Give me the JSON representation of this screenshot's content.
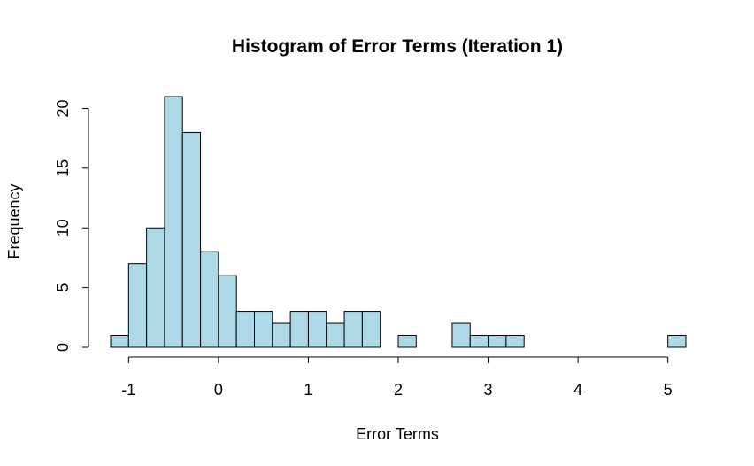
{
  "chart_data": {
    "type": "bar",
    "subtype": "histogram",
    "title": "Histogram of Error Terms (Iteration 1)",
    "xlabel": "Error Terms",
    "ylabel": "Frequency",
    "bin_width": 0.2,
    "bins": [
      {
        "start": -1.2,
        "end": -1.0,
        "count": 1
      },
      {
        "start": -1.0,
        "end": -0.8,
        "count": 7
      },
      {
        "start": -0.8,
        "end": -0.6,
        "count": 10
      },
      {
        "start": -0.6,
        "end": -0.4,
        "count": 21
      },
      {
        "start": -0.4,
        "end": -0.2,
        "count": 18
      },
      {
        "start": -0.2,
        "end": 0.0,
        "count": 8
      },
      {
        "start": 0.0,
        "end": 0.2,
        "count": 6
      },
      {
        "start": 0.2,
        "end": 0.4,
        "count": 3
      },
      {
        "start": 0.4,
        "end": 0.6,
        "count": 3
      },
      {
        "start": 0.6,
        "end": 0.8,
        "count": 2
      },
      {
        "start": 0.8,
        "end": 1.0,
        "count": 3
      },
      {
        "start": 1.0,
        "end": 1.2,
        "count": 3
      },
      {
        "start": 1.2,
        "end": 1.4,
        "count": 2
      },
      {
        "start": 1.4,
        "end": 1.6,
        "count": 3
      },
      {
        "start": 1.6,
        "end": 1.8,
        "count": 3
      },
      {
        "start": 1.8,
        "end": 2.0,
        "count": 0
      },
      {
        "start": 2.0,
        "end": 2.2,
        "count": 1
      },
      {
        "start": 2.2,
        "end": 2.4,
        "count": 0
      },
      {
        "start": 2.4,
        "end": 2.6,
        "count": 0
      },
      {
        "start": 2.6,
        "end": 2.8,
        "count": 2
      },
      {
        "start": 2.8,
        "end": 3.0,
        "count": 1
      },
      {
        "start": 3.0,
        "end": 3.2,
        "count": 1
      },
      {
        "start": 3.2,
        "end": 3.4,
        "count": 1
      },
      {
        "start": 3.4,
        "end": 3.6,
        "count": 0
      },
      {
        "start": 3.6,
        "end": 3.8,
        "count": 0
      },
      {
        "start": 3.8,
        "end": 4.0,
        "count": 0
      },
      {
        "start": 4.0,
        "end": 4.2,
        "count": 0
      },
      {
        "start": 4.2,
        "end": 4.4,
        "count": 0
      },
      {
        "start": 4.4,
        "end": 4.6,
        "count": 0
      },
      {
        "start": 4.6,
        "end": 4.8,
        "count": 0
      },
      {
        "start": 4.8,
        "end": 5.0,
        "count": 0
      },
      {
        "start": 5.0,
        "end": 5.2,
        "count": 1
      }
    ],
    "xlim": [
      -1.2,
      5.2
    ],
    "ylim": [
      0,
      21
    ],
    "x_ticks": [
      -1,
      0,
      1,
      2,
      3,
      4,
      5
    ],
    "x_tick_labels": [
      "-1",
      "0",
      "1",
      "2",
      "3",
      "4",
      "5"
    ],
    "y_ticks": [
      0,
      5,
      10,
      15,
      20
    ],
    "y_tick_labels": [
      "0",
      "5",
      "10",
      "15",
      "20"
    ],
    "grid": false,
    "legend": "none",
    "bar_fill": "#add8e6",
    "bar_stroke": "#000000"
  }
}
